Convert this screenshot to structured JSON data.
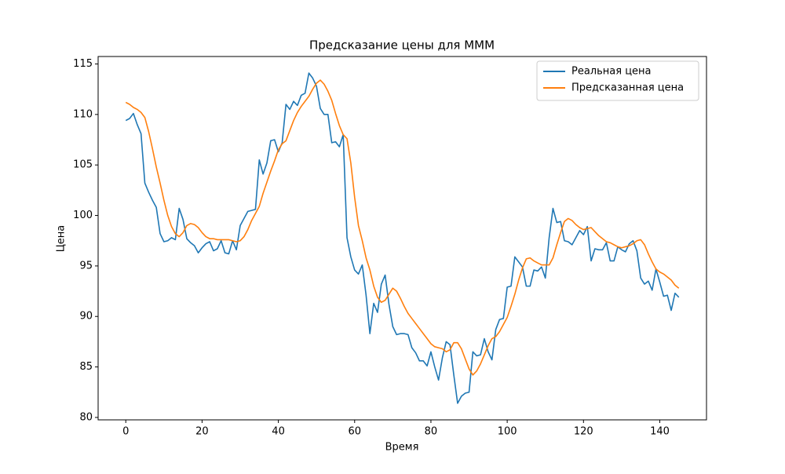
{
  "chart_data": {
    "type": "line",
    "title": "Предсказание цены для MMM",
    "xlabel": "Время",
    "ylabel": "Цена",
    "x": [
      0,
      1,
      2,
      3,
      4,
      5,
      6,
      7,
      8,
      9,
      10,
      11,
      12,
      13,
      14,
      15,
      16,
      17,
      18,
      19,
      20,
      21,
      22,
      23,
      24,
      25,
      26,
      27,
      28,
      29,
      30,
      31,
      32,
      33,
      34,
      35,
      36,
      37,
      38,
      39,
      40,
      41,
      42,
      43,
      44,
      45,
      46,
      47,
      48,
      49,
      50,
      51,
      52,
      53,
      54,
      55,
      56,
      57,
      58,
      59,
      60,
      61,
      62,
      63,
      64,
      65,
      66,
      67,
      68,
      69,
      70,
      71,
      72,
      73,
      74,
      75,
      76,
      77,
      78,
      79,
      80,
      81,
      82,
      83,
      84,
      85,
      86,
      87,
      88,
      89,
      90,
      91,
      92,
      93,
      94,
      95,
      96,
      97,
      98,
      99,
      100,
      101,
      102,
      103,
      104,
      105,
      106,
      107,
      108,
      109,
      110,
      111,
      112,
      113,
      114,
      115,
      116,
      117,
      118,
      119,
      120,
      121,
      122,
      123,
      124,
      125,
      126,
      127,
      128,
      129,
      130,
      131,
      132,
      133,
      134,
      135,
      136,
      137,
      138,
      139,
      140,
      141,
      142,
      143,
      144,
      145
    ],
    "series": [
      {
        "name": "Реальная цена",
        "color": "#1f77b4",
        "values": [
          109.4,
          109.6,
          110.1,
          109.0,
          108.1,
          103.2,
          102.3,
          101.5,
          100.8,
          98.2,
          97.4,
          97.5,
          97.8,
          97.6,
          100.7,
          99.6,
          97.7,
          97.3,
          97.0,
          96.3,
          96.8,
          97.2,
          97.4,
          96.5,
          96.7,
          97.5,
          96.3,
          96.2,
          97.5,
          96.6,
          99.0,
          99.7,
          100.4,
          100.5,
          100.6,
          105.5,
          104.1,
          105.2,
          107.4,
          107.5,
          106.3,
          107.2,
          111.0,
          110.5,
          111.3,
          110.9,
          111.9,
          112.1,
          114.1,
          113.6,
          112.8,
          110.6,
          110.0,
          110.0,
          107.2,
          107.3,
          106.8,
          108.0,
          97.8,
          95.9,
          94.6,
          94.2,
          95.1,
          92.1,
          88.3,
          91.3,
          90.4,
          93.2,
          94.1,
          91.2,
          89.0,
          88.2,
          88.3,
          88.3,
          88.2,
          86.9,
          86.4,
          85.6,
          85.6,
          85.1,
          86.5,
          85.0,
          83.7,
          85.9,
          87.5,
          87.2,
          84.2,
          81.4,
          82.1,
          82.4,
          82.5,
          86.5,
          86.1,
          86.2,
          87.8,
          86.5,
          85.7,
          88.7,
          89.7,
          89.8,
          92.9,
          93.0,
          95.9,
          95.4,
          94.9,
          93.0,
          93.0,
          94.6,
          94.5,
          94.9,
          93.8,
          97.8,
          100.7,
          99.3,
          99.4,
          97.5,
          97.4,
          97.1,
          97.8,
          98.5,
          98.1,
          98.9,
          95.5,
          96.7,
          96.6,
          96.6,
          97.3,
          95.5,
          95.5,
          96.9,
          96.6,
          96.4,
          97.2,
          97.5,
          96.5,
          93.8,
          93.2,
          93.5,
          92.6,
          94.7,
          93.4,
          92.0,
          92.1,
          90.6,
          92.3,
          91.9
        ]
      },
      {
        "name": "Предсказанная цена",
        "color": "#ff7f0e",
        "values": [
          111.2,
          111.0,
          110.7,
          110.5,
          110.2,
          109.7,
          108.3,
          106.6,
          104.8,
          103.2,
          101.5,
          100.0,
          98.9,
          98.2,
          97.9,
          98.3,
          99.0,
          99.2,
          99.1,
          98.8,
          98.3,
          97.9,
          97.7,
          97.7,
          97.6,
          97.6,
          97.6,
          97.6,
          97.5,
          97.4,
          97.5,
          97.9,
          98.6,
          99.5,
          100.2,
          100.9,
          102.2,
          103.3,
          104.4,
          105.4,
          106.5,
          107.1,
          107.4,
          108.4,
          109.4,
          110.2,
          110.8,
          111.3,
          111.8,
          112.5,
          113.1,
          113.4,
          113.0,
          112.3,
          111.4,
          110.1,
          108.9,
          108.0,
          107.6,
          105.2,
          101.8,
          99.0,
          97.5,
          95.8,
          94.6,
          93.0,
          91.9,
          91.4,
          91.6,
          92.2,
          92.8,
          92.5,
          91.8,
          91.0,
          90.3,
          89.8,
          89.3,
          88.8,
          88.3,
          87.8,
          87.3,
          87.0,
          86.9,
          86.8,
          86.5,
          86.7,
          87.4,
          87.4,
          86.8,
          85.8,
          84.8,
          84.2,
          84.6,
          85.3,
          86.2,
          87.1,
          87.8,
          88.0,
          88.5,
          89.2,
          89.9,
          91.0,
          92.2,
          93.6,
          94.8,
          95.7,
          95.8,
          95.5,
          95.3,
          95.1,
          95.1,
          95.1,
          95.8,
          97.1,
          98.3,
          99.4,
          99.7,
          99.5,
          99.1,
          98.8,
          98.6,
          98.7,
          98.8,
          98.4,
          98.0,
          97.7,
          97.4,
          97.3,
          97.1,
          96.9,
          96.8,
          96.9,
          97.0,
          97.2,
          97.5,
          97.6,
          97.1,
          96.2,
          95.4,
          94.7,
          94.4,
          94.2,
          93.9,
          93.6,
          93.1,
          92.8
        ]
      }
    ],
    "xlim": [
      -7.25,
      152.25
    ],
    "ylim": [
      79.76,
      115.74
    ],
    "xticks": [
      0,
      20,
      40,
      60,
      80,
      100,
      120,
      140
    ],
    "yticks": [
      80,
      85,
      90,
      95,
      100,
      105,
      110,
      115
    ],
    "grid": false,
    "legend": "upper right"
  }
}
